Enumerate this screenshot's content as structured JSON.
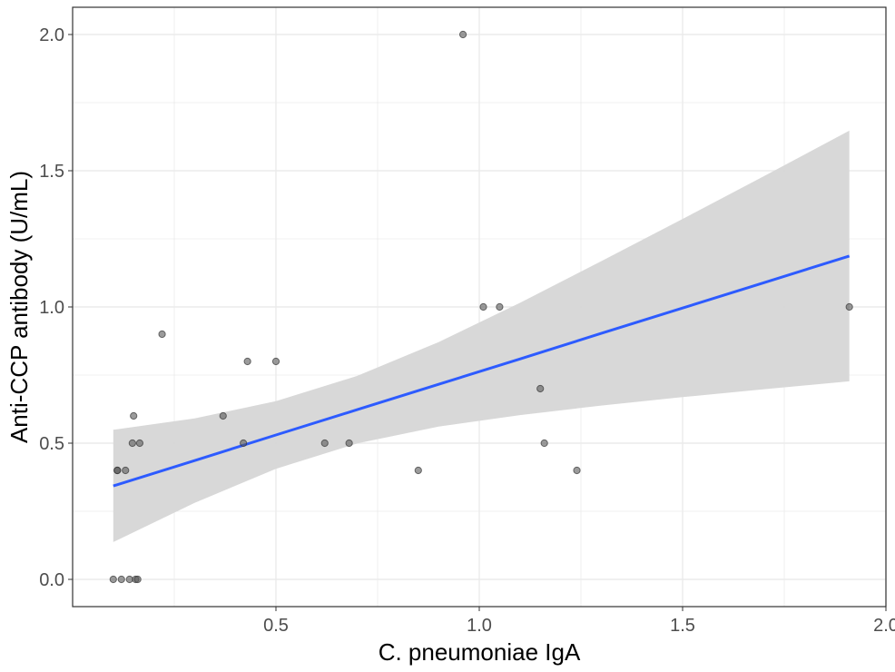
{
  "chart_data": {
    "type": "scatter",
    "title": "",
    "xlabel": "C. pneumoniae IgA",
    "ylabel": "Anti-CCP antibody (U/mL)",
    "xlim": [
      0,
      2.0
    ],
    "ylim": [
      -0.1,
      2.1
    ],
    "xticks": [
      {
        "v": 0.5,
        "label": "0.5"
      },
      {
        "v": 1.0,
        "label": "1.0"
      },
      {
        "v": 1.5,
        "label": "1.5"
      },
      {
        "v": 2.0,
        "label": "2.0"
      }
    ],
    "yticks": [
      {
        "v": 0,
        "label": "0.0"
      },
      {
        "v": 0.5,
        "label": "0.5"
      },
      {
        "v": 1.0,
        "label": "1.0"
      },
      {
        "v": 1.5,
        "label": "1.5"
      },
      {
        "v": 2.0,
        "label": "2.0"
      }
    ],
    "grid": true,
    "points": [
      [
        0.1,
        0
      ],
      [
        0.12,
        0
      ],
      [
        0.14,
        0
      ],
      [
        0.155,
        0
      ],
      [
        0.16,
        0
      ],
      [
        0.11,
        0.4
      ],
      [
        0.11,
        0.4
      ],
      [
        0.13,
        0.4
      ],
      [
        0.147,
        0.5
      ],
      [
        0.165,
        0.5
      ],
      [
        0.15,
        0.6
      ],
      [
        0.22,
        0.9
      ],
      [
        0.37,
        0.6
      ],
      [
        0.42,
        0.5
      ],
      [
        0.43,
        0.8
      ],
      [
        0.5,
        0.8
      ],
      [
        0.62,
        0.5
      ],
      [
        0.68,
        0.5
      ],
      [
        0.85,
        0.4
      ],
      [
        0.96,
        2.0
      ],
      [
        1.01,
        1.0
      ],
      [
        1.05,
        1.0
      ],
      [
        1.15,
        0.7
      ],
      [
        1.16,
        0.5
      ],
      [
        1.24,
        0.4
      ],
      [
        1.91,
        1.0
      ]
    ],
    "fit": {
      "method": "linear",
      "x": [
        0.1,
        0.3,
        0.5,
        0.7,
        0.9,
        1.1,
        1.3,
        1.5,
        1.7,
        1.91
      ],
      "y": [
        0.343,
        0.436,
        0.53,
        0.623,
        0.716,
        0.809,
        0.903,
        0.996,
        1.089,
        1.187
      ],
      "ci_lower": [
        0.137,
        0.281,
        0.406,
        0.499,
        0.561,
        0.603,
        0.638,
        0.669,
        0.698,
        0.727
      ],
      "ci_upper": [
        0.549,
        0.591,
        0.654,
        0.747,
        0.871,
        1.015,
        1.168,
        1.323,
        1.48,
        1.647
      ]
    },
    "colors": {
      "points": "#595959",
      "fit_line": "#2d5bff",
      "ci_band": "#d6d6d6",
      "grid": "#ebebeb"
    }
  }
}
